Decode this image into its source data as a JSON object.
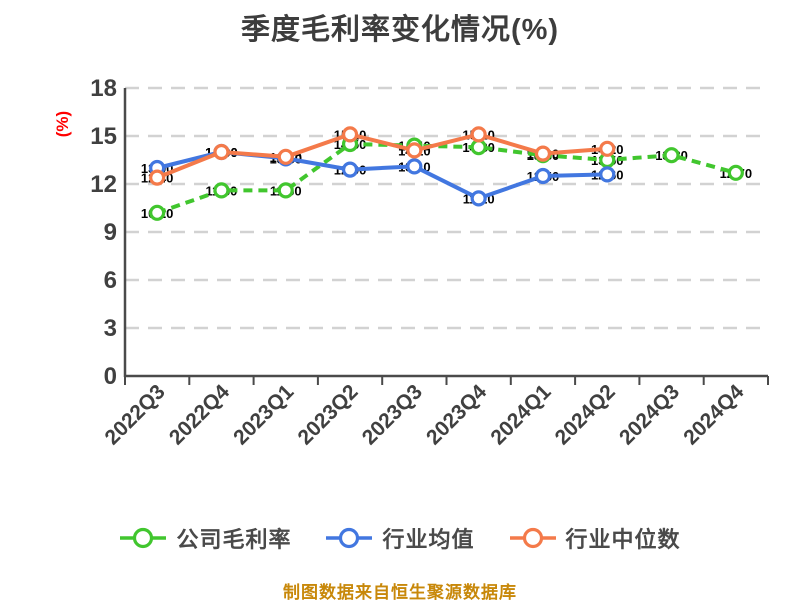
{
  "title": "季度毛利率变化情况(%)",
  "y_axis_label": "(%)",
  "footer_note": "制图数据来自恒生聚源数据库",
  "colors": {
    "background": "#ffffff",
    "title_text": "#3d3d3d",
    "axis_text": "#404040",
    "axis_line": "#4a4a4a",
    "gridline": "#d2d2d2",
    "y_label_red": "#ff0000",
    "footer_gold": "#c8880a",
    "legend_text": "#4a4a4a",
    "marker_fill": "#ffffff",
    "point_label": "#000000",
    "series_green": "#41c62e",
    "series_blue": "#4277e0",
    "series_orange": "#f47a4a"
  },
  "legend": [
    {
      "label": "公司毛利率"
    },
    {
      "label": "行业均值"
    },
    {
      "label": "行业中位数"
    }
  ],
  "chart_data": {
    "type": "line",
    "title": "季度毛利率变化情况(%)",
    "ylabel": "(%)",
    "xlabel": "",
    "categories": [
      "2022Q3",
      "2022Q4",
      "2023Q1",
      "2023Q2",
      "2023Q3",
      "2023Q4",
      "2024Q1",
      "2024Q2",
      "2024Q3",
      "2024Q4"
    ],
    "y_ticks": [
      0,
      3,
      6,
      9,
      12,
      15,
      18
    ],
    "ylim": [
      0,
      18
    ],
    "grid": "horizontal-dashed",
    "legend_position": "bottom",
    "x_tick_rotation": -45,
    "series": [
      {
        "name": "公司毛利率",
        "color": "#41c62e",
        "style": "dashed",
        "values": [
          10.2,
          11.6,
          11.6,
          14.5,
          14.4,
          14.3,
          13.8,
          13.5,
          13.8,
          12.7
        ]
      },
      {
        "name": "行业均值",
        "color": "#4277e0",
        "style": "solid",
        "values": [
          13.0,
          14.0,
          13.6,
          12.9,
          13.1,
          11.1,
          12.5,
          12.6,
          null,
          null
        ]
      },
      {
        "name": "行业中位数",
        "color": "#f47a4a",
        "style": "solid",
        "values": [
          12.4,
          14.0,
          13.7,
          15.1,
          14.1,
          15.1,
          13.9,
          14.2,
          null,
          null
        ]
      }
    ]
  }
}
